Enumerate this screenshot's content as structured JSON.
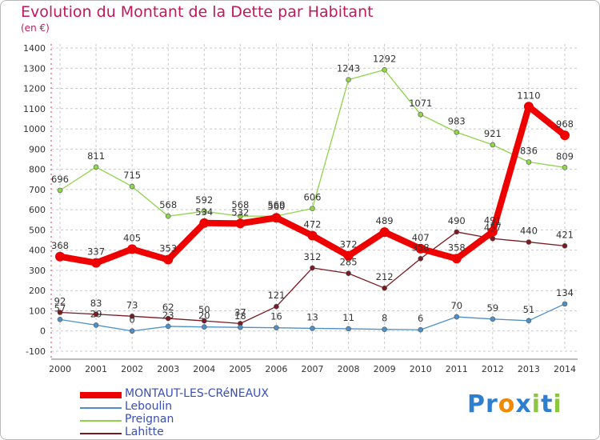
{
  "title": "Evolution du Montant de la Dette par Habitant",
  "unit_label": "(en €)",
  "logo_text": "Proxiti",
  "chart_data": {
    "type": "line",
    "title": "Evolution du Montant de la Dette par Habitant",
    "ylabel": "(en €)",
    "x": [
      2000,
      2001,
      2002,
      2003,
      2004,
      2005,
      2006,
      2007,
      2008,
      2009,
      2010,
      2011,
      2012,
      2013,
      2014
    ],
    "ylim": [
      -100,
      1400
    ],
    "yticks": [
      -100,
      0,
      100,
      200,
      300,
      400,
      500,
      600,
      700,
      800,
      900,
      1000,
      1100,
      1200,
      1300,
      1400
    ],
    "grid": true,
    "legend": "bottom-left",
    "series": [
      {
        "name": "Lahitte",
        "color": "#7b1a22",
        "values": [
          92,
          83,
          73,
          62,
          50,
          37,
          121,
          312,
          285,
          212,
          358,
          490,
          457,
          440,
          421
        ]
      },
      {
        "name": "Leboulin",
        "color": "#4f8fc8",
        "values": [
          57,
          29,
          0,
          23,
          20,
          18,
          16,
          13,
          11,
          8,
          6,
          70,
          59,
          51,
          134
        ]
      },
      {
        "name": "Preignan",
        "color": "#8fd44a",
        "values": [
          696,
          811,
          715,
          568,
          592,
          568,
          569,
          606,
          1243,
          1292,
          1071,
          983,
          921,
          836,
          809
        ]
      },
      {
        "name": "MONTAUT-LES-CRéNEAUX",
        "color": "#ee0000",
        "values": [
          368,
          337,
          405,
          353,
          534,
          532,
          560,
          472,
          372,
          489,
          407,
          358,
          491,
          1110,
          968
        ]
      }
    ]
  },
  "legend": [
    {
      "name": "MONTAUT-LES-CRéNEAUX",
      "color": "#ee0000"
    },
    {
      "name": "Leboulin",
      "color": "#4f8fc8"
    },
    {
      "name": "Preignan",
      "color": "#8fd44a"
    },
    {
      "name": "Lahitte",
      "color": "#7b1a22"
    }
  ]
}
